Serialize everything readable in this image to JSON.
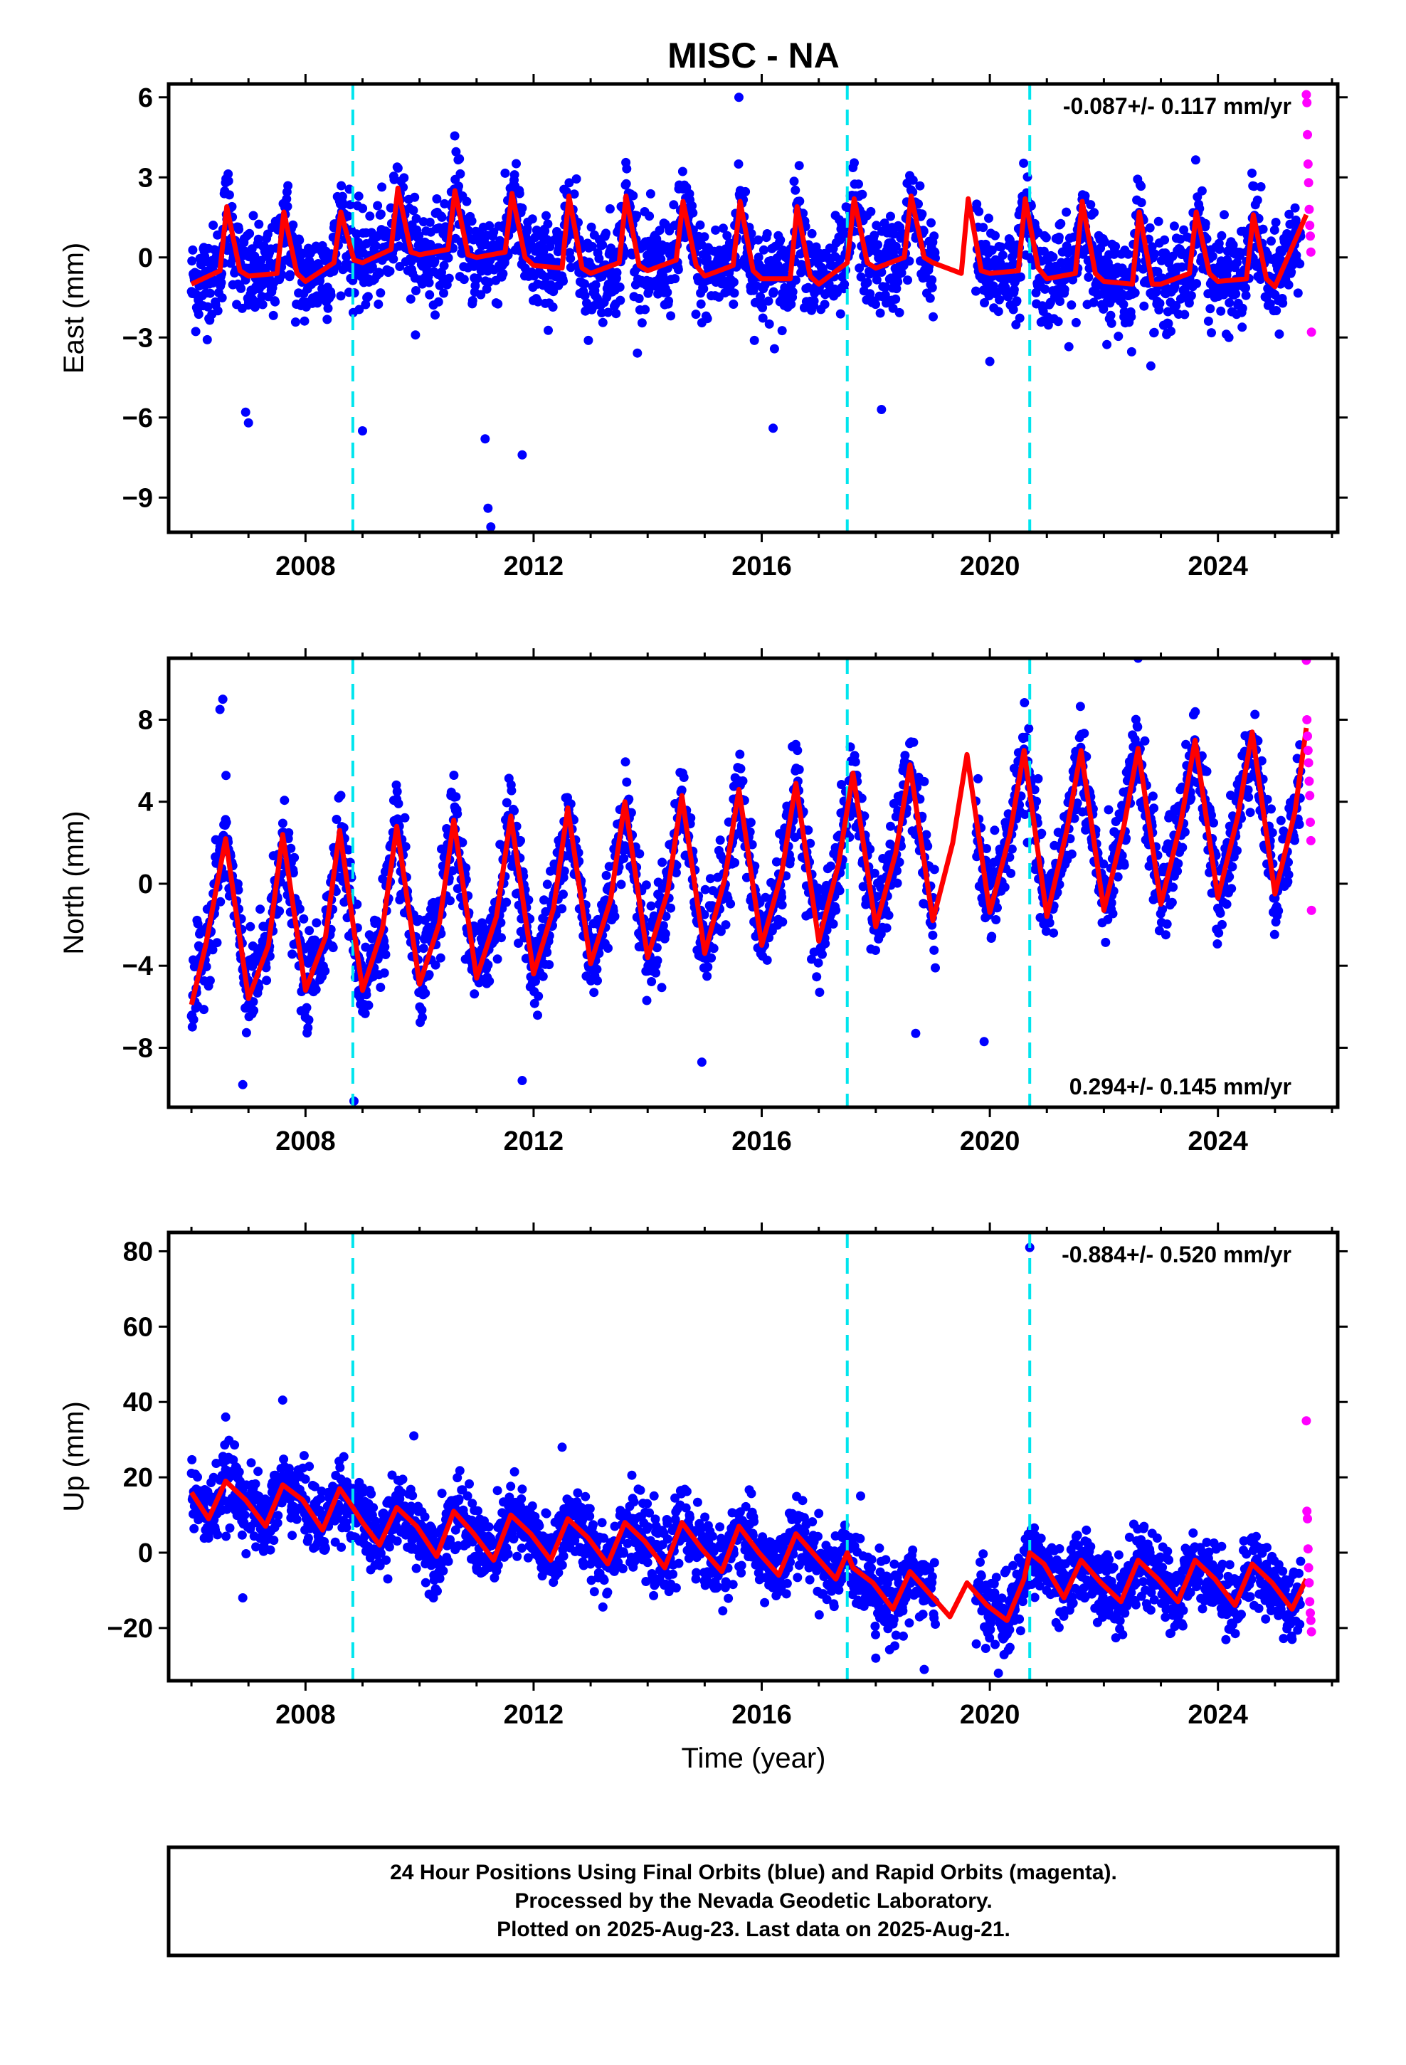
{
  "figure": {
    "title": "MISC - NA",
    "xlabel": "Time (year)"
  },
  "caption": {
    "lines": [
      "24 Hour Positions Using Final Orbits (blue) and Rapid Orbits (magenta).",
      "Processed by the Nevada Geodetic Laboratory.",
      "Plotted on 2025-Aug-23. Last data on 2025-Aug-21."
    ]
  },
  "colors": {
    "final_orbits": "#0000ff",
    "rapid_orbits": "#ff00ff",
    "model_fit": "#ff0000",
    "offset_lines": "#00e5ee",
    "axes": "#000000"
  },
  "chart_data": [
    {
      "type": "scatter",
      "component": "east",
      "ylabel": "East (mm)",
      "ylim": [
        -10.3,
        6.5
      ],
      "xlim": [
        2005.6,
        2026.1
      ],
      "yticks": [
        -9,
        -6,
        -3,
        0,
        3,
        6
      ],
      "ytick_labels": [
        "−9",
        "−6",
        "−3",
        "0",
        "3",
        "6"
      ],
      "xticks": [
        2008,
        2012,
        2016,
        2020,
        2024
      ],
      "xtick_labels": [
        "2008",
        "2012",
        "2016",
        "2020",
        "2024"
      ],
      "rate_label": "-0.087+/- 0.117 mm/yr",
      "rate_label_position": "top-right",
      "offset_epochs": [
        2008.83,
        2017.5,
        2020.7
      ],
      "series": [
        {
          "role": "model",
          "style": "line",
          "x": [
            2006.0,
            2006.5,
            2006.62,
            2006.85,
            2007.0,
            2007.5,
            2007.62,
            2007.85,
            2008.0,
            2008.5,
            2008.62,
            2008.85,
            2009.0,
            2009.5,
            2009.62,
            2009.85,
            2010.0,
            2010.5,
            2010.62,
            2010.85,
            2011.0,
            2011.5,
            2011.62,
            2011.85,
            2012.0,
            2012.5,
            2012.62,
            2012.85,
            2013.0,
            2013.5,
            2013.62,
            2013.85,
            2014.0,
            2014.5,
            2014.62,
            2014.85,
            2015.0,
            2015.5,
            2015.62,
            2015.85,
            2016.0,
            2016.5,
            2016.62,
            2016.85,
            2017.0,
            2017.5,
            2017.62,
            2017.85,
            2018.0,
            2018.5,
            2018.62,
            2018.85,
            2019.0,
            2019.5,
            2019.62,
            2019.85,
            2020.0,
            2020.5,
            2020.62,
            2020.85,
            2021.0,
            2021.5,
            2021.62,
            2021.85,
            2022.0,
            2022.5,
            2022.62,
            2022.85,
            2023.0,
            2023.5,
            2023.62,
            2023.85,
            2024.0,
            2024.5,
            2024.62,
            2024.85,
            2025.0,
            2025.55
          ],
          "y": [
            -1.0,
            -0.5,
            1.9,
            -0.5,
            -0.7,
            -0.6,
            1.7,
            -0.6,
            -0.9,
            -0.2,
            1.7,
            -0.1,
            -0.2,
            0.3,
            2.6,
            0.2,
            0.1,
            0.3,
            2.5,
            0.1,
            0.0,
            0.2,
            2.4,
            0.0,
            -0.3,
            -0.4,
            2.3,
            -0.4,
            -0.6,
            -0.2,
            2.3,
            -0.3,
            -0.5,
            -0.1,
            2.1,
            -0.3,
            -0.7,
            -0.3,
            2.1,
            -0.5,
            -0.8,
            -0.8,
            1.9,
            -0.7,
            -1.0,
            -0.2,
            2.2,
            -0.2,
            -0.4,
            0.0,
            2.3,
            0.0,
            -0.2,
            -0.6,
            2.2,
            -0.5,
            -0.6,
            -0.5,
            2.2,
            -0.4,
            -0.8,
            -0.6,
            2.1,
            -0.6,
            -0.9,
            -1.0,
            1.7,
            -1.0,
            -1.0,
            -0.6,
            1.7,
            -0.6,
            -0.9,
            -0.8,
            1.6,
            -0.8,
            -1.1,
            1.6
          ]
        },
        {
          "role": "final_orbits",
          "style": "points",
          "x_range": [
            2006.0,
            2025.45
          ],
          "scatter_sd": 0.9,
          "outliers": [
            {
              "x": 2007.0,
              "y": -6.2
            },
            {
              "x": 2006.95,
              "y": -5.8
            },
            {
              "x": 2009.0,
              "y": -6.5
            },
            {
              "x": 2011.2,
              "y": -9.4
            },
            {
              "x": 2011.25,
              "y": -10.1
            },
            {
              "x": 2011.15,
              "y": -6.8
            },
            {
              "x": 2011.8,
              "y": -7.4
            },
            {
              "x": 2016.2,
              "y": -6.4
            },
            {
              "x": 2015.6,
              "y": 6.0
            },
            {
              "x": 2018.1,
              "y": -5.7
            },
            {
              "x": 2020.0,
              "y": -3.9
            }
          ]
        },
        {
          "role": "rapid_orbits",
          "style": "points",
          "x": [
            2025.55,
            2025.56,
            2025.57,
            2025.58,
            2025.59,
            2025.6,
            2025.61,
            2025.62,
            2025.63,
            2025.64
          ],
          "y": [
            6.1,
            5.8,
            4.6,
            3.5,
            2.8,
            1.8,
            1.2,
            0.8,
            0.2,
            -2.8
          ]
        }
      ]
    },
    {
      "type": "scatter",
      "component": "north",
      "ylabel": "North (mm)",
      "ylim": [
        -10.9,
        11.0
      ],
      "xlim": [
        2005.6,
        2026.1
      ],
      "yticks": [
        -8,
        -4,
        0,
        4,
        8
      ],
      "ytick_labels": [
        "−8",
        "−4",
        "0",
        "4",
        "8"
      ],
      "xticks": [
        2008,
        2012,
        2016,
        2020,
        2024
      ],
      "xtick_labels": [
        "2008",
        "2012",
        "2016",
        "2020",
        "2024"
      ],
      "rate_label": "0.294+/- 0.145 mm/yr",
      "rate_label_position": "bottom-right",
      "offset_epochs": [
        2008.83,
        2017.5,
        2020.7
      ],
      "series": [
        {
          "role": "model",
          "style": "line",
          "x": [
            2006.0,
            2006.25,
            2006.6,
            2007.0,
            2007.35,
            2007.6,
            2008.0,
            2008.35,
            2008.6,
            2009.0,
            2009.35,
            2009.6,
            2010.0,
            2010.35,
            2010.6,
            2011.0,
            2011.35,
            2011.6,
            2012.0,
            2012.35,
            2012.6,
            2013.0,
            2013.35,
            2013.6,
            2014.0,
            2014.35,
            2014.6,
            2015.0,
            2015.35,
            2015.6,
            2016.0,
            2016.35,
            2016.6,
            2017.0,
            2017.35,
            2017.6,
            2018.0,
            2018.35,
            2018.6,
            2019.0,
            2019.35,
            2019.6,
            2020.0,
            2020.35,
            2020.6,
            2021.0,
            2021.35,
            2021.6,
            2022.0,
            2022.35,
            2022.6,
            2023.0,
            2023.35,
            2023.6,
            2024.0,
            2024.35,
            2024.6,
            2025.0,
            2025.35,
            2025.55
          ],
          "y": [
            -5.9,
            -3.0,
            2.2,
            -5.6,
            -3.0,
            2.4,
            -5.2,
            -2.6,
            2.6,
            -5.2,
            -2.2,
            2.8,
            -4.9,
            -1.9,
            3.1,
            -4.6,
            -1.6,
            3.3,
            -4.4,
            -1.2,
            3.7,
            -3.9,
            -0.8,
            4.0,
            -3.6,
            -0.4,
            4.3,
            -3.4,
            0.2,
            4.6,
            -3.0,
            0.5,
            4.9,
            -2.8,
            1.0,
            5.4,
            -2.1,
            1.5,
            5.8,
            -1.8,
            2.0,
            6.3,
            -1.4,
            2.4,
            6.5,
            -1.6,
            2.6,
            6.5,
            -1.3,
            2.8,
            6.6,
            -1.0,
            3.0,
            7.0,
            -0.7,
            3.3,
            7.4,
            -0.5,
            3.5,
            7.6
          ]
        },
        {
          "role": "final_orbits",
          "style": "points",
          "x_range": [
            2006.0,
            2025.45
          ],
          "scatter_sd": 1.1,
          "outliers": [
            {
              "x": 2006.55,
              "y": 9.0
            },
            {
              "x": 2006.5,
              "y": 8.5
            },
            {
              "x": 2006.9,
              "y": -9.8
            },
            {
              "x": 2008.85,
              "y": -10.6
            },
            {
              "x": 2011.8,
              "y": -9.6
            },
            {
              "x": 2014.95,
              "y": -8.7
            },
            {
              "x": 2018.7,
              "y": -7.3
            },
            {
              "x": 2019.9,
              "y": -7.7
            },
            {
              "x": 2022.6,
              "y": 11.0
            }
          ]
        },
        {
          "role": "rapid_orbits",
          "style": "points",
          "x": [
            2025.55,
            2025.56,
            2025.57,
            2025.58,
            2025.59,
            2025.6,
            2025.61,
            2025.62,
            2025.63,
            2025.64
          ],
          "y": [
            10.9,
            8.0,
            7.2,
            6.5,
            5.9,
            5.0,
            4.3,
            3.0,
            2.1,
            -1.3
          ]
        }
      ]
    },
    {
      "type": "scatter",
      "component": "up",
      "ylabel": "Up (mm)",
      "ylim": [
        -34,
        85
      ],
      "xlim": [
        2005.6,
        2026.1
      ],
      "yticks": [
        -20,
        0,
        20,
        40,
        60,
        80
      ],
      "ytick_labels": [
        "−20",
        "0",
        "20",
        "40",
        "60",
        "80"
      ],
      "xticks": [
        2008,
        2012,
        2016,
        2020,
        2024
      ],
      "xtick_labels": [
        "2008",
        "2012",
        "2016",
        "2020",
        "2024"
      ],
      "rate_label": "-0.884+/- 0.520 mm/yr",
      "rate_label_position": "top-right",
      "offset_epochs": [
        2008.83,
        2017.5,
        2020.7
      ],
      "series": [
        {
          "role": "model",
          "style": "line",
          "x": [
            2006.0,
            2006.3,
            2006.6,
            2006.95,
            2007.3,
            2007.6,
            2007.95,
            2008.3,
            2008.6,
            2008.83,
            2009.0,
            2009.3,
            2009.6,
            2009.95,
            2010.3,
            2010.6,
            2010.95,
            2011.3,
            2011.6,
            2011.95,
            2012.3,
            2012.6,
            2012.95,
            2013.3,
            2013.6,
            2013.95,
            2014.3,
            2014.6,
            2014.95,
            2015.3,
            2015.6,
            2015.95,
            2016.3,
            2016.6,
            2016.95,
            2017.3,
            2017.5,
            2017.6,
            2017.95,
            2018.3,
            2018.6,
            2018.95,
            2019.3,
            2019.6,
            2019.95,
            2020.3,
            2020.6,
            2020.7,
            2020.95,
            2021.3,
            2021.6,
            2021.95,
            2022.3,
            2022.6,
            2022.95,
            2023.3,
            2023.6,
            2023.95,
            2024.3,
            2024.6,
            2024.95,
            2025.3,
            2025.55
          ],
          "y": [
            16,
            9,
            19,
            14,
            7,
            18,
            14,
            6,
            17,
            12,
            8,
            2,
            12,
            7,
            -1,
            11,
            5,
            -2,
            10,
            5,
            -2,
            9,
            4,
            -3,
            8,
            3,
            -4,
            8,
            1,
            -5,
            7,
            0,
            -6,
            5,
            -1,
            -7,
            0,
            -4,
            -8,
            -15,
            -5,
            -11,
            -17,
            -8,
            -14,
            -18,
            -7,
            0,
            -3,
            -12,
            -2,
            -8,
            -13,
            -2,
            -7,
            -13,
            -2,
            -7,
            -14,
            -3,
            -8,
            -15,
            -7
          ]
        },
        {
          "role": "final_orbits",
          "style": "points",
          "x_range": [
            2006.0,
            2025.45
          ],
          "scatter_sd": 4.8,
          "outliers": [
            {
              "x": 2007.6,
              "y": 40.5
            },
            {
              "x": 2006.6,
              "y": 36.0
            },
            {
              "x": 2012.5,
              "y": 28.0
            },
            {
              "x": 2009.9,
              "y": 31.0
            },
            {
              "x": 2006.9,
              "y": -12.0
            },
            {
              "x": 2018.0,
              "y": -28.0
            },
            {
              "x": 2018.85,
              "y": -31.0
            },
            {
              "x": 2020.15,
              "y": -32.0
            },
            {
              "x": 2020.7,
              "y": 81.0
            }
          ]
        },
        {
          "role": "rapid_orbits",
          "style": "points",
          "x": [
            2025.55,
            2025.56,
            2025.57,
            2025.58,
            2025.59,
            2025.6,
            2025.61,
            2025.62,
            2025.63,
            2025.64
          ],
          "y": [
            35,
            11,
            9,
            1,
            -4,
            -8,
            -13,
            -16,
            -18,
            -21
          ]
        }
      ]
    }
  ]
}
